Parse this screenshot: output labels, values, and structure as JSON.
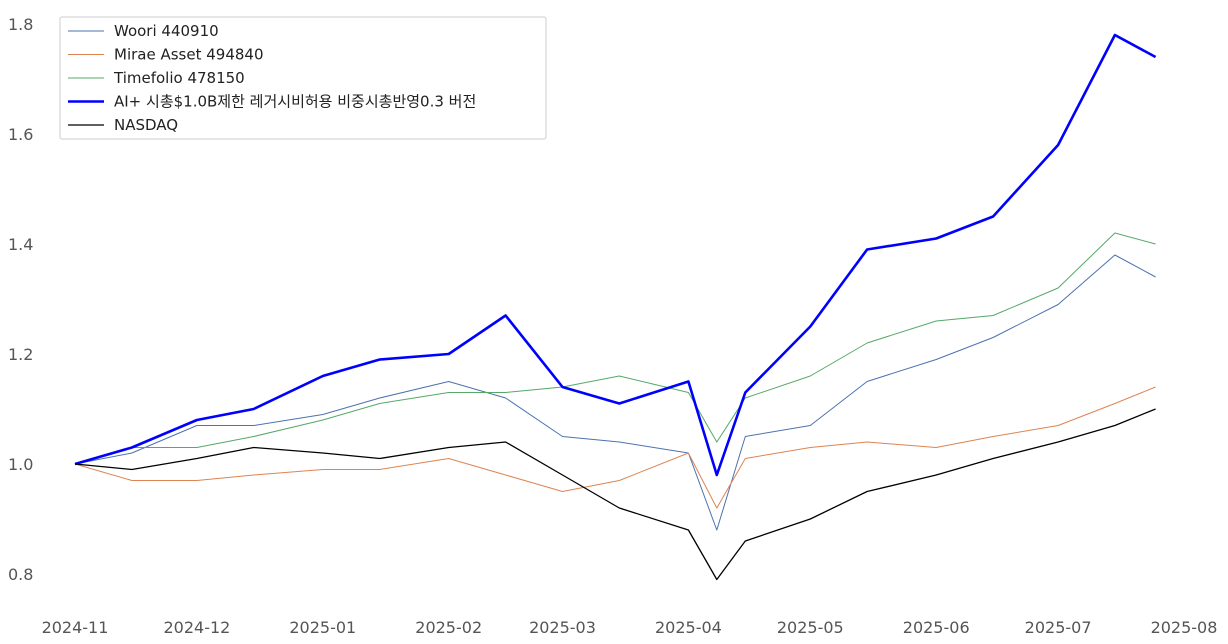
{
  "chart_data": {
    "type": "line",
    "title": "",
    "xlabel": "",
    "ylabel": "",
    "ylim": [
      0.75,
      1.82
    ],
    "xlim": [
      "2024-11-01",
      "2025-08-01"
    ],
    "grid": false,
    "legend_position": "top-left",
    "x_ticks": [
      "2024-11",
      "2024-12",
      "2025-01",
      "2025-02",
      "2025-03",
      "2025-04",
      "2025-05",
      "2025-06",
      "2025-07",
      "2025-08"
    ],
    "y_ticks": [
      "0.8",
      "1.0",
      "1.2",
      "1.4",
      "1.6",
      "1.8"
    ],
    "x": [
      "2024-11-01",
      "2024-11-15",
      "2024-12-01",
      "2024-12-15",
      "2025-01-01",
      "2025-01-15",
      "2025-02-01",
      "2025-02-15",
      "2025-03-01",
      "2025-03-15",
      "2025-04-01",
      "2025-04-08",
      "2025-04-15",
      "2025-05-01",
      "2025-05-15",
      "2025-06-01",
      "2025-06-15",
      "2025-07-01",
      "2025-07-15",
      "2025-07-25"
    ],
    "series": [
      {
        "name": "Woori 440910",
        "color": "#4c72b0",
        "width": 1,
        "values": [
          1.0,
          1.02,
          1.07,
          1.07,
          1.09,
          1.12,
          1.15,
          1.12,
          1.05,
          1.04,
          1.02,
          0.88,
          1.05,
          1.07,
          1.15,
          1.19,
          1.23,
          1.29,
          1.38,
          1.34
        ]
      },
      {
        "name": "Mirae Asset 494840",
        "color": "#dd8452",
        "width": 1,
        "values": [
          1.0,
          0.97,
          0.97,
          0.98,
          0.99,
          0.99,
          1.01,
          0.98,
          0.95,
          0.97,
          1.02,
          0.92,
          1.01,
          1.03,
          1.04,
          1.03,
          1.05,
          1.07,
          1.11,
          1.14
        ]
      },
      {
        "name": "Timefolio 478150",
        "color": "#55a868",
        "width": 1,
        "values": [
          1.0,
          1.03,
          1.03,
          1.05,
          1.08,
          1.11,
          1.13,
          1.13,
          1.14,
          1.16,
          1.13,
          1.04,
          1.12,
          1.16,
          1.22,
          1.26,
          1.27,
          1.32,
          1.42,
          1.4
        ]
      },
      {
        "name": "AI+ 시총$1.0B제한 레거시비허용 비중시총반영0.3 버전",
        "color": "#0000ff",
        "width": 2.6,
        "values": [
          1.0,
          1.03,
          1.08,
          1.1,
          1.16,
          1.19,
          1.2,
          1.27,
          1.14,
          1.11,
          1.15,
          0.98,
          1.13,
          1.25,
          1.39,
          1.41,
          1.45,
          1.58,
          1.78,
          1.74
        ]
      },
      {
        "name": "NASDAQ",
        "color": "#000000",
        "width": 1.3,
        "values": [
          1.0,
          0.99,
          1.01,
          1.03,
          1.02,
          1.01,
          1.03,
          1.04,
          0.98,
          0.92,
          0.88,
          0.79,
          0.86,
          0.9,
          0.95,
          0.98,
          1.01,
          1.04,
          1.07,
          1.1
        ]
      }
    ]
  }
}
